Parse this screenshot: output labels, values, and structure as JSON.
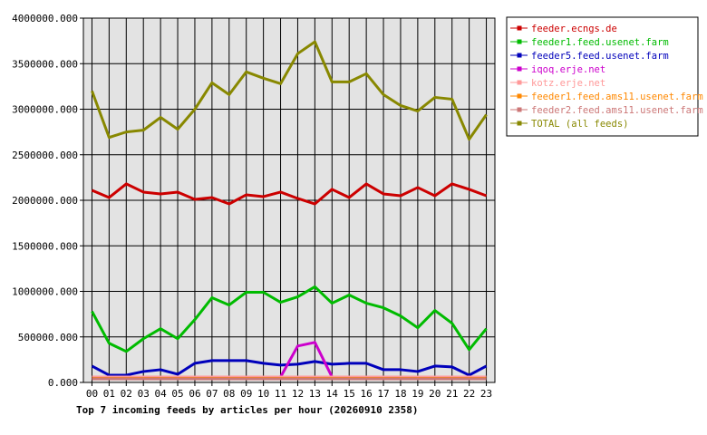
{
  "chart_data": {
    "type": "line",
    "title": "Top 7 incoming feeds by articles per hour (20260910 2358)",
    "xlabel": "",
    "ylabel": "",
    "categories": [
      "00",
      "01",
      "02",
      "03",
      "04",
      "05",
      "06",
      "07",
      "08",
      "09",
      "10",
      "11",
      "12",
      "13",
      "14",
      "15",
      "16",
      "17",
      "18",
      "19",
      "20",
      "21",
      "22",
      "23"
    ],
    "ylim": [
      0,
      4000000
    ],
    "yticks": [
      "0.000",
      "500000.000",
      "1000000.000",
      "1500000.000",
      "2000000.000",
      "2500000.000",
      "3000000.000",
      "3500000.000",
      "4000000.000"
    ],
    "ytick_values": [
      0,
      500000,
      1000000,
      1500000,
      2000000,
      2500000,
      3000000,
      3500000,
      4000000
    ],
    "grid": true,
    "legend_position": "right",
    "plot_background": "#e3e3e3",
    "series": [
      {
        "name": "feeder.ecngs.de",
        "color": "#cc0000",
        "values": [
          2110000,
          2030000,
          2180000,
          2090000,
          2070000,
          2090000,
          2010000,
          2030000,
          1960000,
          2060000,
          2040000,
          2090000,
          2020000,
          1960000,
          2120000,
          2030000,
          2180000,
          2070000,
          2050000,
          2140000,
          2050000,
          2180000,
          2120000,
          2050000
        ]
      },
      {
        "name": "feeder1.feed.usenet.farm",
        "color": "#00bb00",
        "values": [
          780000,
          430000,
          340000,
          480000,
          590000,
          480000,
          690000,
          930000,
          850000,
          990000,
          990000,
          880000,
          940000,
          1050000,
          870000,
          960000,
          870000,
          820000,
          730000,
          600000,
          790000,
          650000,
          360000,
          590000
        ]
      },
      {
        "name": "feeder5.feed.usenet.farm",
        "color": "#0000bb",
        "values": [
          180000,
          80000,
          80000,
          120000,
          140000,
          90000,
          210000,
          240000,
          240000,
          240000,
          210000,
          190000,
          200000,
          230000,
          200000,
          210000,
          210000,
          140000,
          140000,
          120000,
          180000,
          170000,
          80000,
          180000
        ]
      },
      {
        "name": "iqoq.erje.net",
        "color": "#cc00cc",
        "values": [
          null,
          null,
          null,
          null,
          null,
          null,
          null,
          60000,
          50000,
          null,
          null,
          60000,
          400000,
          440000,
          60000,
          60000,
          null,
          null,
          null,
          null,
          null,
          null,
          null,
          null
        ]
      },
      {
        "name": "kotz.erje.net",
        "color": "#ff9999",
        "values": [
          60000,
          60000,
          60000,
          60000,
          60000,
          60000,
          60000,
          60000,
          60000,
          60000,
          60000,
          60000,
          60000,
          60000,
          60000,
          60000,
          60000,
          60000,
          60000,
          60000,
          60000,
          60000,
          60000,
          60000
        ]
      },
      {
        "name": "feeder1.feed.ams11.usenet.farm",
        "color": "#ff8800",
        "values": [
          45000,
          45000,
          45000,
          45000,
          45000,
          45000,
          45000,
          45000,
          45000,
          45000,
          45000,
          45000,
          45000,
          45000,
          45000,
          45000,
          45000,
          45000,
          45000,
          45000,
          45000,
          45000,
          45000,
          45000
        ]
      },
      {
        "name": "feeder2.feed.ams11.usenet.farm",
        "color": "#cc7777",
        "values": [
          40000,
          40000,
          40000,
          40000,
          40000,
          40000,
          40000,
          40000,
          40000,
          40000,
          40000,
          40000,
          40000,
          40000,
          40000,
          40000,
          40000,
          40000,
          40000,
          40000,
          40000,
          40000,
          40000,
          40000
        ]
      },
      {
        "name": "TOTAL (all feeds)",
        "color": "#888800",
        "values": [
          3200000,
          2690000,
          2750000,
          2770000,
          2910000,
          2780000,
          3000000,
          3290000,
          3160000,
          3410000,
          3340000,
          3280000,
          3610000,
          3740000,
          3300000,
          3300000,
          3390000,
          3160000,
          3040000,
          2980000,
          3130000,
          3110000,
          2670000,
          2940000
        ]
      }
    ]
  }
}
